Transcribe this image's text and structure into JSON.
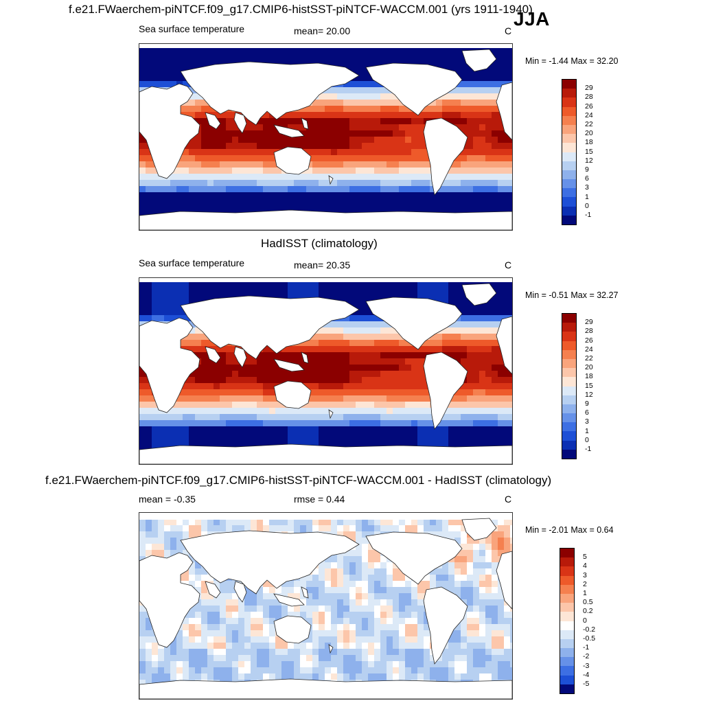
{
  "season": "JJA",
  "panels": [
    {
      "title": "f.e21.FWaerchem-piNTCF.f09_g17.CMIP6-histSST-piNTCF-WACCM.001 (yrs 1911-1940)",
      "left_label": "Sea surface temperature",
      "mid_label": "mean=  20.00",
      "units": "C",
      "minmax": "Min =  -1.44 Max =  32.20",
      "colorbar_labels": [
        "29",
        "28",
        "26",
        "24",
        "22",
        "20",
        "18",
        "15",
        "12",
        "9",
        "6",
        "3",
        "1",
        "0",
        "-1"
      ]
    },
    {
      "title": "HadISST (climatology)",
      "left_label": "Sea surface temperature",
      "mid_label": "mean=  20.35",
      "units": "C",
      "minmax": "Min =  -0.51 Max =  32.27",
      "colorbar_labels": [
        "29",
        "28",
        "26",
        "24",
        "22",
        "20",
        "18",
        "15",
        "12",
        "9",
        "6",
        "3",
        "1",
        "0",
        "-1"
      ]
    },
    {
      "title": "f.e21.FWaerchem-piNTCF.f09_g17.CMIP6-histSST-piNTCF-WACCM.001 - HadISST (climatology)",
      "left_label": "mean =  -0.35",
      "mid_label": "rmse =   0.44",
      "units": "C",
      "minmax": "Min =  -2.01 Max =   0.64",
      "colorbar_labels": [
        "5",
        "4",
        "3",
        "2",
        "1",
        "0.5",
        "0.2",
        "0",
        "-0.2",
        "-0.5",
        "-1",
        "-2",
        "-3",
        "-4",
        "-5"
      ]
    }
  ],
  "colors": {
    "abs_scale": [
      "#8b0000",
      "#b81a0a",
      "#d93416",
      "#ee5a2a",
      "#f5804f",
      "#f9a47c",
      "#fcc6aa",
      "#fde6d6",
      "#dce9f7",
      "#b7d0f1",
      "#8eb1ec",
      "#6691e8",
      "#3d6fe3",
      "#1d4fd6",
      "#0b2fb3",
      "#02097a"
    ],
    "diff_scale": [
      "#8b0000",
      "#b81a0a",
      "#d93416",
      "#ee5a2a",
      "#f5804f",
      "#f9a47c",
      "#fcc6aa",
      "#fde6d6",
      "#ffffff",
      "#dce9f7",
      "#b7d0f1",
      "#8eb1ec",
      "#6691e8",
      "#3d6fe3",
      "#1d4fd6",
      "#02097a"
    ],
    "land": "#ffffff",
    "coast": "#222222"
  },
  "chart_data": [
    {
      "type": "heatmap",
      "title": "f.e21.FWaerchem-piNTCF.f09_g17.CMIP6-histSST-piNTCF-WACCM.001 (yrs 1911-1940)",
      "variable": "Sea surface temperature",
      "units": "C",
      "mean": 20.0,
      "min": -1.44,
      "max": 32.2,
      "levels": [
        -1,
        0,
        1,
        3,
        6,
        9,
        12,
        15,
        18,
        20,
        22,
        24,
        26,
        28,
        29
      ]
    },
    {
      "type": "heatmap",
      "title": "HadISST (climatology)",
      "variable": "Sea surface temperature",
      "units": "C",
      "mean": 20.35,
      "min": -0.51,
      "max": 32.27,
      "levels": [
        -1,
        0,
        1,
        3,
        6,
        9,
        12,
        15,
        18,
        20,
        22,
        24,
        26,
        28,
        29
      ]
    },
    {
      "type": "heatmap",
      "title": "f.e21.FWaerchem-piNTCF.f09_g17.CMIP6-histSST-piNTCF-WACCM.001 - HadISST (climatology)",
      "units": "C",
      "mean": -0.35,
      "rmse": 0.44,
      "min": -2.01,
      "max": 0.64,
      "levels": [
        -5,
        -4,
        -3,
        -2,
        -1,
        -0.5,
        -0.2,
        0,
        0.2,
        0.5,
        1,
        2,
        3,
        4,
        5
      ]
    }
  ]
}
